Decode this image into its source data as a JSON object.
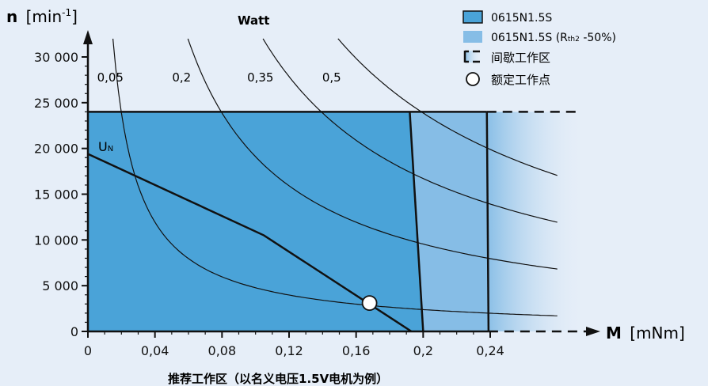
{
  "chart_data": {
    "type": "area",
    "y_axis": {
      "label_main": "n",
      "label_unit_open": "[min",
      "label_unit_sup": "-1",
      "label_unit_close": "]",
      "ylim": [
        0,
        30000
      ],
      "ticks": [
        0,
        5000,
        10000,
        15000,
        20000,
        25000,
        30000
      ],
      "tick_labels": [
        "0",
        "5 000",
        "10 000",
        "15 000",
        "20 000",
        "25 000",
        "30 000"
      ]
    },
    "x_axis": {
      "label_main": "M",
      "label_unit": "[mNm]",
      "xlim": [
        0,
        0.24
      ],
      "ticks": [
        0,
        0.04,
        0.08,
        0.12,
        0.16,
        0.2,
        0.24
      ],
      "tick_labels": [
        "0",
        "0,04",
        "0,08",
        "0,12",
        "0,16",
        "0,2",
        "0,24"
      ]
    },
    "watt_title": "Watt",
    "power_curves": [
      {
        "label": "0,05",
        "watts": 0.05
      },
      {
        "label": "0,2",
        "watts": 0.2
      },
      {
        "label": "0,35",
        "watts": 0.35
      },
      {
        "label": "0,5",
        "watts": 0.5
      }
    ],
    "speed_limit": 24000,
    "continuous_region": {
      "name": "0615N1.5S",
      "top": [
        [
          0,
          24000
        ],
        [
          0.192,
          24000
        ]
      ],
      "boundary": [
        [
          0.192,
          24000
        ],
        [
          0.2,
          0
        ]
      ],
      "color": "#4aa3d8"
    },
    "reduced_rth_region": {
      "name_main": "0615N1.5S (R",
      "name_sub": "th2",
      "name_tail": " -50%)",
      "boundary": [
        [
          0.238,
          24000
        ],
        [
          0.239,
          0
        ]
      ],
      "color": "#86bde6"
    },
    "intermittent_region": {
      "name": "间歇工作区"
    },
    "un_line": {
      "label_main": "U",
      "label_sub": "N",
      "points": [
        [
          0,
          19400
        ],
        [
          0.105,
          10500
        ],
        [
          0.193,
          0
        ]
      ]
    },
    "rated_point": {
      "name": "额定工作点",
      "x": 0.168,
      "y": 3100
    },
    "caption": "推荐工作区（以名义电压1.5V电机为例）"
  }
}
